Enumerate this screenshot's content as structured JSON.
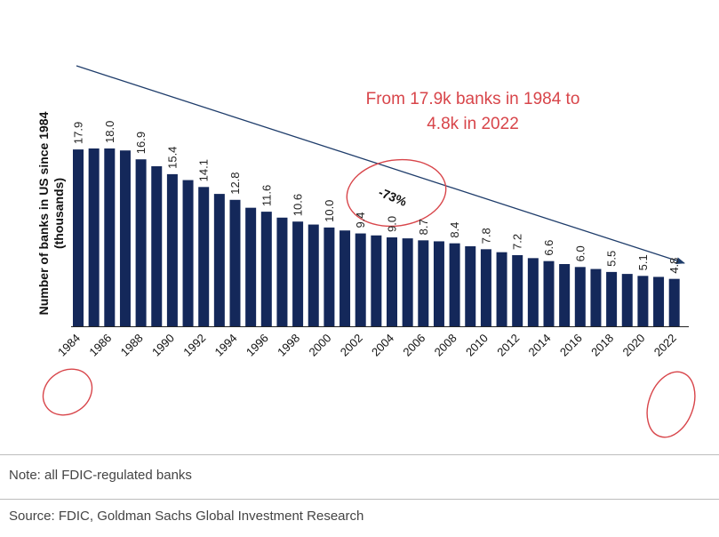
{
  "chart_data": {
    "type": "bar",
    "categories": [
      "1984",
      "1985",
      "1986",
      "1987",
      "1988",
      "1989",
      "1990",
      "1991",
      "1992",
      "1993",
      "1994",
      "1995",
      "1996",
      "1997",
      "1998",
      "1999",
      "2000",
      "2001",
      "2002",
      "2003",
      "2004",
      "2005",
      "2006",
      "2007",
      "2008",
      "2009",
      "2010",
      "2011",
      "2012",
      "2013",
      "2014",
      "2015",
      "2016",
      "2017",
      "2018",
      "2019",
      "2020",
      "2021",
      "2022"
    ],
    "values": [
      17.9,
      18.0,
      18.0,
      17.8,
      16.9,
      16.2,
      15.4,
      14.8,
      14.1,
      13.4,
      12.8,
      12.0,
      11.6,
      11.0,
      10.6,
      10.3,
      10.0,
      9.7,
      9.4,
      9.2,
      9.0,
      8.9,
      8.7,
      8.6,
      8.4,
      8.1,
      7.8,
      7.5,
      7.2,
      6.9,
      6.6,
      6.3,
      6.0,
      5.8,
      5.5,
      5.3,
      5.1,
      5.0,
      4.8
    ],
    "labeled_values": {
      "1984": "17.9",
      "1986": "18.0",
      "1988": "16.9",
      "1990": "15.4",
      "1992": "14.1",
      "1994": "12.8",
      "1996": "11.6",
      "1998": "10.6",
      "2000": "10.0",
      "2002": "9.4",
      "2004": "9.0",
      "2006": "8.7",
      "2008": "8.4",
      "2010": "7.8",
      "2012": "7.2",
      "2014": "6.6",
      "2016": "6.0",
      "2018": "5.5",
      "2020": "5.1",
      "2022": "4.8"
    },
    "tick_labels": [
      "1984",
      "1986",
      "1988",
      "1990",
      "1992",
      "1994",
      "1996",
      "1998",
      "2000",
      "2002",
      "2004",
      "2006",
      "2008",
      "2010",
      "2012",
      "2014",
      "2016",
      "2018",
      "2020",
      "2022"
    ],
    "ylabel_line1": "Number of banks in US since 1984",
    "ylabel_line2": "(thousands)",
    "ylim": [
      0,
      18
    ],
    "bar_color": "#14285a",
    "annotation_color": "#d8454a",
    "arrow_color": "#1f3d6b",
    "callout_line1": "From 17.9k banks in 1984 to",
    "callout_line2": "4.8k in 2022",
    "change_label": "-73%",
    "circled_ticks": [
      "1984",
      "2022"
    ]
  },
  "note": "Note: all FDIC-regulated banks",
  "source": "Source: FDIC, Goldman Sachs Global Investment Research"
}
